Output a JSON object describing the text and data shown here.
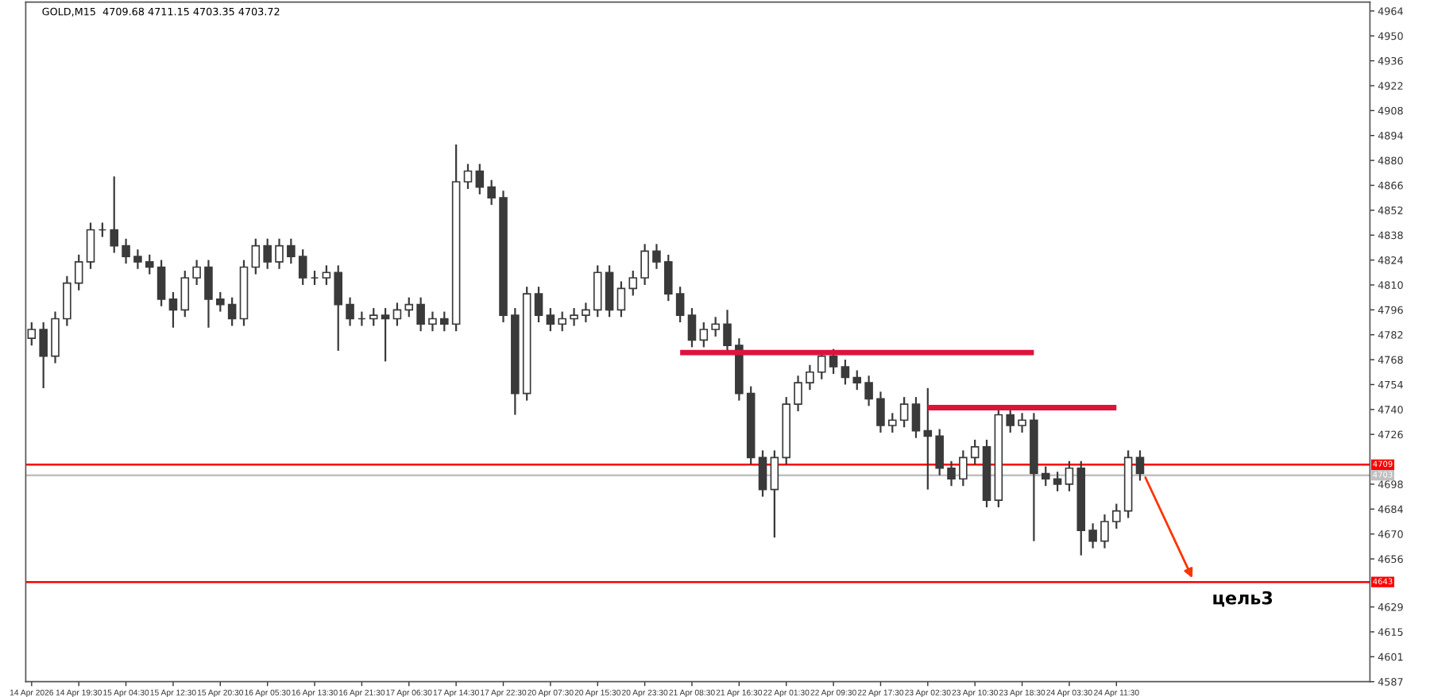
{
  "chart_data": {
    "type": "candlestick",
    "title": "GOLD,M15  4709.68 4711.15 4703.35 4703.72",
    "categories": [
      "14 Apr 2026",
      null,
      null,
      null,
      "14 Apr 19:30",
      null,
      null,
      null,
      "15 Apr 04:30",
      null,
      null,
      null,
      "15 Apr 12:30",
      null,
      null,
      null,
      "15 Apr 20:30",
      null,
      null,
      null,
      "16 Apr 05:30",
      null,
      null,
      null,
      "16 Apr 13:30",
      null,
      null,
      null,
      "16 Apr 21:30",
      null,
      null,
      null,
      "17 Apr 06:30",
      null,
      null,
      null,
      "17 Apr 14:30",
      null,
      null,
      null,
      "17 Apr 22:30",
      null,
      null,
      null,
      "20 Apr 07:30",
      null,
      null,
      null,
      "20 Apr 15:30",
      null,
      null,
      null,
      "20 Apr 23:30",
      null,
      null,
      null,
      "21 Apr 08:30",
      null,
      null,
      null,
      "21 Apr 16:30",
      null,
      null,
      null,
      "22 Apr 01:30",
      null,
      null,
      null,
      "22 Apr 09:30",
      null,
      null,
      null,
      "22 Apr 17:30",
      null,
      null,
      null,
      "23 Apr 02:30",
      null,
      null,
      null,
      "23 Apr 10:30",
      null,
      null,
      null,
      "23 Apr 18:30",
      null,
      null,
      null,
      "24 Apr 03:30",
      null,
      null,
      null,
      "24 Apr 11:30",
      null,
      null,
      null,
      null,
      null,
      null,
      null,
      null,
      null,
      null,
      null,
      null,
      null,
      null,
      null,
      null,
      null,
      null,
      null,
      null,
      null
    ],
    "series": [
      {
        "type": "candlestick",
        "color": "#3a3a3a",
        "ohlc": [
          [
            4780,
            4789,
            4776,
            4785
          ],
          [
            4785,
            4789,
            4752,
            4770
          ],
          [
            4770,
            4795,
            4766,
            4791
          ],
          [
            4791,
            4815,
            4787,
            4811
          ],
          [
            4811,
            4827,
            4807,
            4823
          ],
          [
            4823,
            4845,
            4819,
            4841
          ],
          [
            4841,
            4845,
            4837,
            4841
          ],
          [
            4841,
            4871,
            4828,
            4832
          ],
          [
            4832,
            4836,
            4822,
            4826
          ],
          [
            4826,
            4830,
            4819,
            4823
          ],
          [
            4823,
            4827,
            4816,
            4820
          ],
          [
            4820,
            4824,
            4798,
            4802
          ],
          [
            4802,
            4806,
            4786,
            4796
          ],
          [
            4796,
            4818,
            4792,
            4814
          ],
          [
            4814,
            4824,
            4810,
            4820
          ],
          [
            4820,
            4824,
            4786,
            4802
          ],
          [
            4802,
            4806,
            4795,
            4799
          ],
          [
            4799,
            4803,
            4787,
            4791
          ],
          [
            4791,
            4824,
            4787,
            4820
          ],
          [
            4820,
            4836,
            4816,
            4832
          ],
          [
            4832,
            4836,
            4819,
            4823
          ],
          [
            4823,
            4836,
            4819,
            4832
          ],
          [
            4832,
            4836,
            4822,
            4826
          ],
          [
            4826,
            4830,
            4810,
            4814
          ],
          [
            4814,
            4818,
            4810,
            4814
          ],
          [
            4814,
            4821,
            4810,
            4817
          ],
          [
            4817,
            4821,
            4773,
            4799
          ],
          [
            4799,
            4803,
            4787,
            4791
          ],
          [
            4791,
            4795,
            4787,
            4791
          ],
          [
            4791,
            4797,
            4787,
            4793
          ],
          [
            4793,
            4797,
            4767,
            4791
          ],
          [
            4791,
            4800,
            4787,
            4796
          ],
          [
            4796,
            4803,
            4792,
            4799
          ],
          [
            4799,
            4803,
            4784,
            4788
          ],
          [
            4788,
            4795,
            4784,
            4791
          ],
          [
            4791,
            4795,
            4784,
            4788
          ],
          [
            4788,
            4889,
            4784,
            4868
          ],
          [
            4868,
            4878,
            4864,
            4874
          ],
          [
            4874,
            4878,
            4861,
            4865
          ],
          [
            4865,
            4869,
            4855,
            4859
          ],
          [
            4859,
            4863,
            4789,
            4793
          ],
          [
            4793,
            4797,
            4737,
            4749
          ],
          [
            4749,
            4809,
            4745,
            4805
          ],
          [
            4805,
            4809,
            4789,
            4793
          ],
          [
            4793,
            4797,
            4784,
            4788
          ],
          [
            4788,
            4795,
            4784,
            4791
          ],
          [
            4791,
            4797,
            4787,
            4793
          ],
          [
            4793,
            4800,
            4789,
            4796
          ],
          [
            4796,
            4821,
            4792,
            4817
          ],
          [
            4817,
            4821,
            4792,
            4796
          ],
          [
            4796,
            4812,
            4792,
            4808
          ],
          [
            4808,
            4818,
            4804,
            4814
          ],
          [
            4814,
            4833,
            4810,
            4829
          ],
          [
            4829,
            4833,
            4819,
            4823
          ],
          [
            4823,
            4827,
            4801,
            4805
          ],
          [
            4805,
            4809,
            4789,
            4793
          ],
          [
            4793,
            4797,
            4775,
            4779
          ],
          [
            4779,
            4789,
            4775,
            4785
          ],
          [
            4785,
            4792,
            4781,
            4788
          ],
          [
            4788,
            4796,
            4772,
            4776
          ],
          [
            4776,
            4780,
            4745,
            4749
          ],
          [
            4749,
            4753,
            4709,
            4713
          ],
          [
            4713,
            4717,
            4691,
            4695
          ],
          [
            4695,
            4717,
            4668,
            4713
          ],
          [
            4713,
            4747,
            4709,
            4743
          ],
          [
            4743,
            4759,
            4739,
            4755
          ],
          [
            4755,
            4765,
            4751,
            4761
          ],
          [
            4761,
            4772,
            4757,
            4770
          ],
          [
            4770,
            4774,
            4760,
            4764
          ],
          [
            4764,
            4768,
            4754,
            4758
          ],
          [
            4758,
            4762,
            4751,
            4755
          ],
          [
            4755,
            4759,
            4742,
            4746
          ],
          [
            4746,
            4750,
            4727,
            4731
          ],
          [
            4731,
            4738,
            4727,
            4734
          ],
          [
            4734,
            4747,
            4730,
            4743
          ],
          [
            4743,
            4747,
            4724,
            4728
          ],
          [
            4728,
            4752,
            4695,
            4725
          ],
          [
            4725,
            4729,
            4703,
            4707
          ],
          [
            4707,
            4711,
            4697,
            4701
          ],
          [
            4701,
            4717,
            4697,
            4713
          ],
          [
            4713,
            4723,
            4709,
            4719
          ],
          [
            4719,
            4723,
            4685,
            4689
          ],
          [
            4689,
            4741,
            4685,
            4737
          ],
          [
            4737,
            4741,
            4727,
            4731
          ],
          [
            4731,
            4738,
            4727,
            4734
          ],
          [
            4734,
            4738,
            4666,
            4704
          ],
          [
            4704,
            4708,
            4697,
            4701
          ],
          [
            4701,
            4705,
            4694,
            4698
          ],
          [
            4698,
            4711,
            4694,
            4707
          ],
          [
            4707,
            4711,
            4658,
            4672
          ],
          [
            4672,
            4676,
            4662,
            4666
          ],
          [
            4666,
            4681,
            4662,
            4677
          ],
          [
            4677,
            4687,
            4673,
            4683
          ],
          [
            4683,
            4717,
            4679,
            4713
          ],
          [
            4713,
            4717,
            4700,
            4704
          ],
          null,
          null,
          null,
          null,
          null,
          null,
          null,
          null,
          null,
          null,
          null,
          null,
          null,
          null,
          null,
          null,
          null,
          null,
          null
        ]
      },
      {
        "type": "line",
        "color": "#dc143c",
        "values": [
          null,
          null,
          null,
          null,
          null,
          null,
          null,
          null,
          null,
          null,
          null,
          null,
          null,
          null,
          null,
          null,
          null,
          null,
          null,
          null,
          null,
          null,
          null,
          null,
          null,
          null,
          null,
          null,
          null,
          null,
          null,
          null,
          null,
          null,
          null,
          null,
          null,
          null,
          null,
          null,
          null,
          null,
          null,
          null,
          null,
          null,
          null,
          null,
          null,
          null,
          null,
          null,
          null,
          null,
          null,
          4772,
          4772,
          4772,
          4772,
          4772,
          4772,
          4772,
          4772,
          4772,
          4772,
          4772,
          4772,
          4772,
          4772,
          4772,
          4772,
          4772,
          4772,
          4772,
          4772,
          4772,
          4772,
          4772,
          4772,
          4772,
          4772,
          4772,
          4772,
          4772,
          4772,
          4772,
          null,
          null,
          null,
          null,
          null,
          null,
          null,
          null,
          null,
          null,
          null,
          null,
          null,
          null,
          null,
          null,
          null,
          null,
          null,
          null,
          null,
          null,
          null,
          null,
          null,
          null,
          null,
          null
        ]
      },
      {
        "type": "line",
        "color": "#dc143c",
        "values": [
          null,
          null,
          null,
          null,
          null,
          null,
          null,
          null,
          null,
          null,
          null,
          null,
          null,
          null,
          null,
          null,
          null,
          null,
          null,
          null,
          null,
          null,
          null,
          null,
          null,
          null,
          null,
          null,
          null,
          null,
          null,
          null,
          null,
          null,
          null,
          null,
          null,
          null,
          null,
          null,
          null,
          null,
          null,
          null,
          null,
          null,
          null,
          null,
          null,
          null,
          null,
          null,
          null,
          null,
          null,
          null,
          null,
          null,
          null,
          null,
          null,
          null,
          null,
          null,
          null,
          null,
          null,
          null,
          null,
          null,
          null,
          null,
          null,
          null,
          null,
          null,
          4741,
          4741,
          4741,
          4741,
          4741,
          4741,
          4741,
          4741,
          4741,
          4741,
          4741,
          4741,
          4741,
          4741,
          4741,
          4741,
          4741,
          null,
          null,
          null,
          null,
          null,
          null,
          null,
          null,
          null,
          null,
          null,
          null,
          null,
          null,
          null,
          null,
          null,
          null,
          null,
          null,
          null
        ]
      }
    ],
    "ylim": [
      4587,
      4969
    ],
    "yticks": [
      4964,
      4950,
      4936,
      4922,
      4908,
      4894,
      4880,
      4866,
      4852,
      4838,
      4824,
      4810,
      4796,
      4782,
      4768,
      4754,
      4740,
      4726,
      4698,
      4684,
      4670,
      4656,
      4629,
      4615,
      4601,
      4587
    ],
    "ref_lines": [
      {
        "axis": "y",
        "value": 4709,
        "label": "4709",
        "color": "#ff0000"
      },
      {
        "axis": "y",
        "value": 4643,
        "label": "4643",
        "color": "#ff0000"
      },
      {
        "axis": "y",
        "value": 4703,
        "label": "4703",
        "color": "#c0c0c0"
      }
    ],
    "annotations": [
      {
        "text": "цель3",
        "y": 4643
      }
    ],
    "grid": false,
    "legend": false
  }
}
